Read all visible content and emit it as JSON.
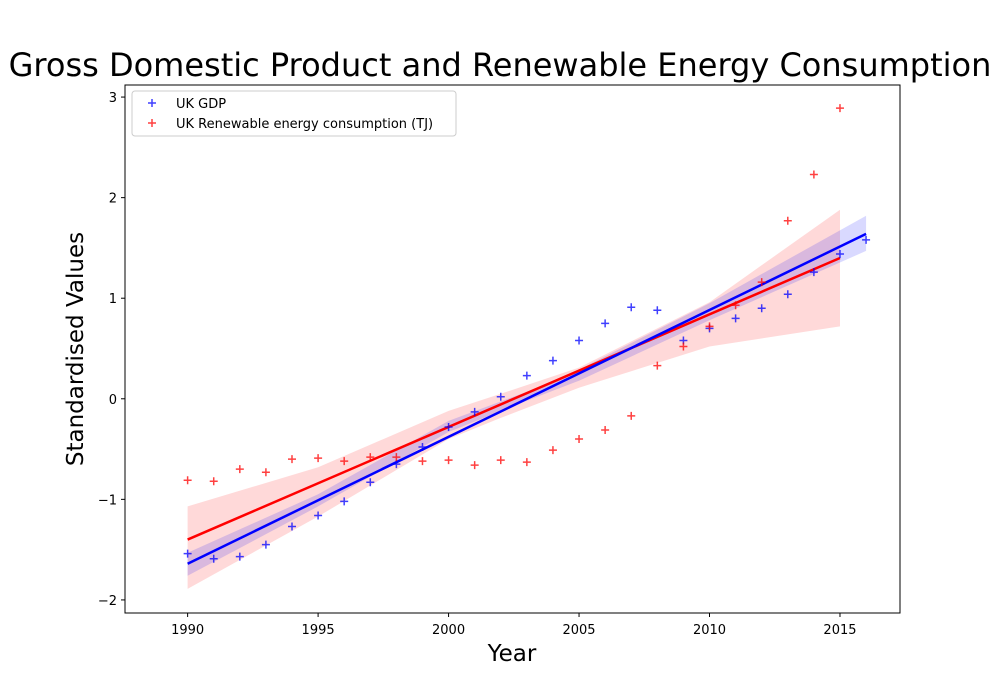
{
  "chart_data": {
    "type": "scatter",
    "title": "Gross Domestic Product and Renewable Energy Consumption",
    "xlabel": "Year",
    "ylabel": "Standardised Values",
    "xlim": [
      1987.6,
      2017.3
    ],
    "ylim": [
      -2.13,
      3.12
    ],
    "xticks": [
      1990,
      1995,
      2000,
      2005,
      2010,
      2015
    ],
    "yticks": [
      -2,
      -1,
      0,
      1,
      2,
      3
    ],
    "ytick_labels": [
      "−2",
      "−1",
      "0",
      "1",
      "2",
      "3"
    ],
    "legend_position": "upper-left",
    "grid": false,
    "series": [
      {
        "name": "UK GDP",
        "color": "#0000ff",
        "marker": "plus",
        "x": [
          1990,
          1991,
          1992,
          1993,
          1994,
          1995,
          1996,
          1997,
          1998,
          1999,
          2000,
          2001,
          2002,
          2003,
          2004,
          2005,
          2006,
          2007,
          2008,
          2009,
          2010,
          2011,
          2012,
          2013,
          2014,
          2015,
          2016
        ],
        "y": [
          -1.54,
          -1.59,
          -1.57,
          -1.45,
          -1.27,
          -1.16,
          -1.02,
          -0.83,
          -0.65,
          -0.48,
          -0.28,
          -0.13,
          0.02,
          0.23,
          0.38,
          0.58,
          0.75,
          0.91,
          0.88,
          0.58,
          0.7,
          0.8,
          0.9,
          1.04,
          1.26,
          1.44,
          1.58
        ],
        "fit": {
          "x": [
            1990,
            2016
          ],
          "y": [
            -1.64,
            1.64
          ]
        },
        "ci": {
          "x": [
            1990,
            1995,
            2000,
            2003,
            2005,
            2010,
            2016
          ],
          "lower": [
            -1.76,
            -1.07,
            -0.33,
            -0.02,
            0.18,
            0.78,
            1.47
          ],
          "upper": [
            -1.53,
            -0.95,
            -0.22,
            0.07,
            0.29,
            0.95,
            1.82
          ]
        }
      },
      {
        "name": "UK Renewable energy consumption (TJ)",
        "color": "#ff0000",
        "marker": "plus",
        "x": [
          1990,
          1991,
          1992,
          1993,
          1994,
          1995,
          1996,
          1997,
          1998,
          1999,
          2000,
          2001,
          2002,
          2003,
          2004,
          2005,
          2006,
          2007,
          2008,
          2009,
          2010,
          2011,
          2012,
          2013,
          2014,
          2015
        ],
        "y": [
          -0.81,
          -0.82,
          -0.7,
          -0.73,
          -0.6,
          -0.59,
          -0.62,
          -0.58,
          -0.58,
          -0.62,
          -0.61,
          -0.66,
          -0.61,
          -0.63,
          -0.51,
          -0.4,
          -0.31,
          -0.17,
          0.33,
          0.52,
          0.72,
          0.93,
          1.16,
          1.77,
          2.23,
          2.89
        ],
        "fit": {
          "x": [
            1990,
            2015
          ],
          "y": [
            -1.4,
            1.4
          ]
        },
        "ci": {
          "x": [
            1990,
            1995,
            2000,
            2002,
            2005,
            2010,
            2015
          ],
          "lower": [
            -1.89,
            -1.17,
            -0.4,
            -0.19,
            0.11,
            0.52,
            0.72
          ],
          "upper": [
            -1.07,
            -0.68,
            -0.12,
            0.05,
            0.31,
            0.96,
            1.88
          ]
        }
      }
    ]
  }
}
